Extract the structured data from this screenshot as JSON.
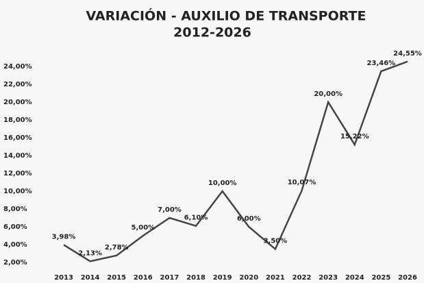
{
  "chart_data": {
    "type": "line",
    "title": "VARIACIÓN - AUXILIO DE TRANSPORTE",
    "subtitle": "2012-2026",
    "categories": [
      "2013",
      "2014",
      "2015",
      "2016",
      "2017",
      "2018",
      "2019",
      "2020",
      "2021",
      "2022",
      "2023",
      "2024",
      "2025",
      "2026"
    ],
    "values": [
      3.98,
      2.13,
      2.78,
      5.0,
      7.0,
      6.1,
      10.0,
      6.0,
      3.5,
      10.07,
      20.0,
      15.22,
      23.46,
      24.55
    ],
    "value_labels": [
      "3,98%",
      "2,13%",
      "2,78%",
      "5,00%",
      "7,00%",
      "6,10%",
      "10,00%",
      "6,00%",
      "3,50%",
      "10,07%",
      "20,00%",
      "15,22%",
      "23,46%",
      "24,55%"
    ],
    "color": "#444444",
    "ylim": [
      2,
      25
    ],
    "yticks": [
      {
        "value": 2,
        "label": "2,00%"
      },
      {
        "value": 4,
        "label": "4,00%"
      },
      {
        "value": 6,
        "label": "6,00%"
      },
      {
        "value": 8,
        "label": "8,00%"
      },
      {
        "value": 10,
        "label": "10,00%"
      },
      {
        "value": 12,
        "label": "12,00%"
      },
      {
        "value": 14,
        "label": "14,00%"
      },
      {
        "value": 16,
        "label": "16,00%"
      },
      {
        "value": 18,
        "label": "18,00%"
      },
      {
        "value": 20,
        "label": "20,00%"
      },
      {
        "value": 22,
        "label": "22,00%"
      },
      {
        "value": 24,
        "label": "24,00%"
      }
    ],
    "grid": false
  }
}
